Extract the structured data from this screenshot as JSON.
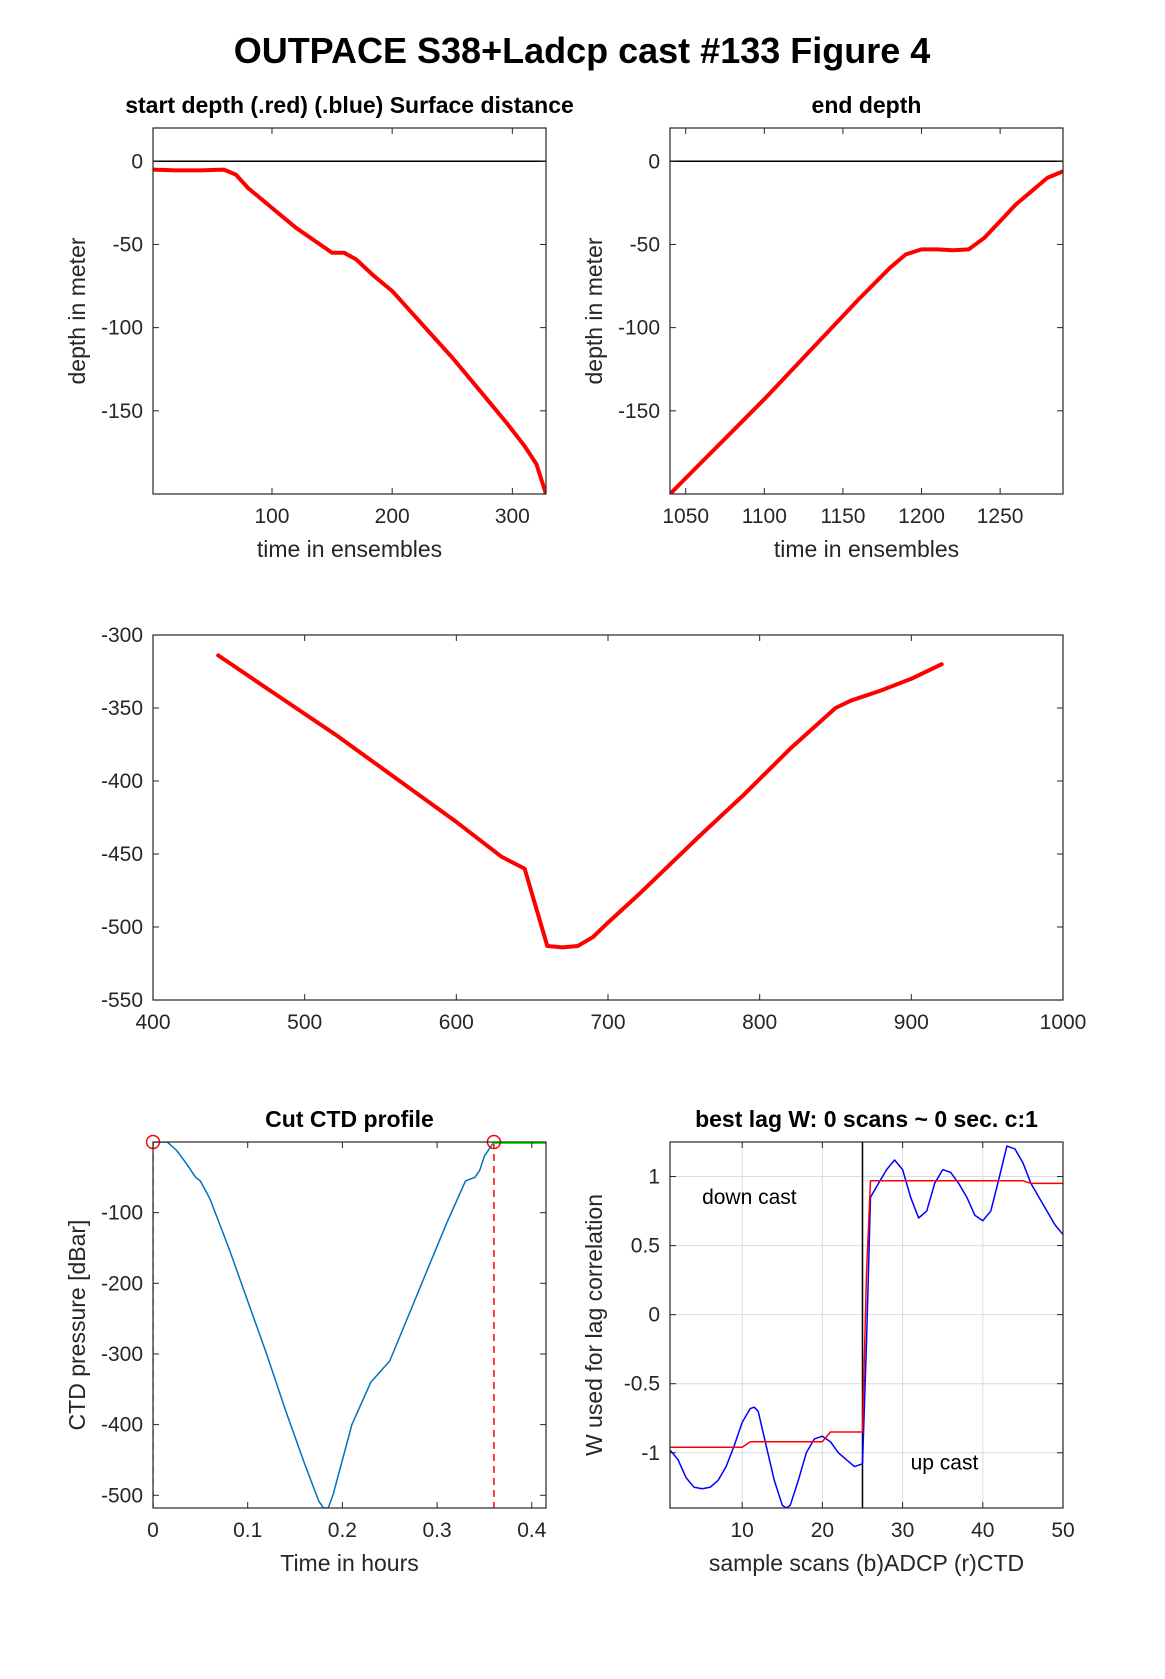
{
  "figure_title": "OUTPACE S38+Ladcp cast #133    Figure 4",
  "chart_data": [
    {
      "id": "p1",
      "type": "line",
      "title": "start depth (.red) (.blue) Surface distance",
      "xlabel": "time in ensembles",
      "ylabel": "depth in meter",
      "xlim": [
        1,
        328
      ],
      "ylim": [
        -200,
        20
      ],
      "xticks": [
        100,
        200,
        300
      ],
      "yticks": [
        0,
        -50,
        -100,
        -150
      ],
      "grid": false,
      "hlines": [
        {
          "y": 0,
          "color": "#000000"
        }
      ],
      "series": [
        {
          "color": "#ff0000",
          "width": 4,
          "x": [
            1,
            20,
            40,
            60,
            70,
            80,
            100,
            120,
            140,
            150,
            160,
            170,
            185,
            200,
            210,
            220,
            235,
            250,
            265,
            280,
            295,
            310,
            320,
            328
          ],
          "y": [
            -5,
            -5.5,
            -5.5,
            -5,
            -8,
            -16,
            -28,
            -40,
            -50,
            -55,
            -55,
            -59,
            -69,
            -78,
            -86,
            -94,
            -106,
            -118,
            -131,
            -144,
            -157,
            -171,
            -182,
            -200
          ]
        }
      ]
    },
    {
      "id": "p2",
      "type": "line",
      "title": "end depth",
      "xlabel": "time in ensembles",
      "ylabel": "depth in meter",
      "xlim": [
        1040,
        1290
      ],
      "ylim": [
        -200,
        20
      ],
      "xticks": [
        1050,
        1100,
        1150,
        1200,
        1250
      ],
      "yticks": [
        0,
        -50,
        -100,
        -150
      ],
      "grid": false,
      "hlines": [
        {
          "y": 0,
          "color": "#000000"
        }
      ],
      "series": [
        {
          "color": "#ff0000",
          "width": 4,
          "x": [
            1040,
            1060,
            1080,
            1100,
            1120,
            1140,
            1160,
            1180,
            1190,
            1200,
            1210,
            1220,
            1230,
            1240,
            1250,
            1260,
            1270,
            1280,
            1290
          ],
          "y": [
            -200,
            -181,
            -162,
            -143,
            -123,
            -103,
            -83,
            -64,
            -56,
            -53,
            -53,
            -53.5,
            -53,
            -46,
            -36,
            -26,
            -18,
            -10,
            -6
          ]
        }
      ]
    },
    {
      "id": "p3",
      "type": "line",
      "title": "",
      "xlabel": "",
      "ylabel": "",
      "xlim": [
        400,
        1000
      ],
      "ylim": [
        -550,
        -300
      ],
      "xticks": [
        400,
        500,
        600,
        700,
        800,
        900,
        1000
      ],
      "yticks": [
        -300,
        -350,
        -400,
        -450,
        -500,
        -550
      ],
      "grid": false,
      "hlines": [],
      "series": [
        {
          "color": "#ff0000",
          "width": 4,
          "x": [
            443,
            480,
            520,
            560,
            600,
            630,
            645,
            660,
            670,
            680,
            690,
            700,
            720,
            740,
            760,
            790,
            820,
            850,
            860,
            880,
            900,
            920
          ],
          "y": [
            -314,
            -340,
            -368,
            -398,
            -428,
            -452,
            -460,
            -513,
            -514,
            -513,
            -507,
            -497,
            -478,
            -458,
            -438,
            -409,
            -378,
            -350,
            -345,
            -338,
            -330,
            -320
          ]
        }
      ]
    },
    {
      "id": "p4",
      "type": "line",
      "title": "Cut CTD profile",
      "xlabel": "Time in hours",
      "ylabel": "CTD pressure [dBar]",
      "xlim": [
        0,
        0.415
      ],
      "ylim": [
        -518,
        0
      ],
      "xticks": [
        0,
        0.1,
        0.2,
        0.3,
        0.4
      ],
      "yticks": [
        -100,
        -200,
        -300,
        -400,
        -500
      ],
      "grid": false,
      "hlines": [],
      "series": [
        {
          "color": "#0072bd",
          "width": 1.5,
          "x": [
            0,
            0.015,
            0.025,
            0.035,
            0.045,
            0.05,
            0.06,
            0.08,
            0.1,
            0.12,
            0.14,
            0.16,
            0.175,
            0.18,
            0.185,
            0.19,
            0.2,
            0.21,
            0.23,
            0.25,
            0.27,
            0.29,
            0.31,
            0.33,
            0.34,
            0.345,
            0.35,
            0.36
          ],
          "y": [
            0,
            0,
            -12,
            -30,
            -50,
            -55,
            -80,
            -150,
            -225,
            -300,
            -380,
            -455,
            -508,
            -518,
            -518,
            -500,
            -450,
            -400,
            -340,
            -310,
            -245,
            -180,
            -115,
            -55,
            -50,
            -40,
            -20,
            0
          ]
        },
        {
          "color": "#00ff00",
          "width": 4,
          "x": [
            0.36,
            0.415
          ],
          "y": [
            0,
            0
          ]
        }
      ],
      "vlines": [
        {
          "x": 0,
          "color": "#ff0000",
          "dash": true
        },
        {
          "x": 0.36,
          "color": "#ff0000",
          "dash": true
        }
      ],
      "markers": [
        {
          "x": 0,
          "y": 0,
          "color": "#ff0000"
        },
        {
          "x": 0.36,
          "y": 0,
          "color": "#ff0000"
        }
      ]
    },
    {
      "id": "p5",
      "type": "line",
      "title": "best lag W: 0 scans ~ 0 sec.  c:1",
      "xlabel": "sample scans (b)ADCP (r)CTD",
      "ylabel": "W used for lag correlation",
      "xlim": [
        1,
        50
      ],
      "ylim": [
        -1.4,
        1.25
      ],
      "xticks": [
        10,
        20,
        30,
        40,
        50
      ],
      "yticks": [
        1,
        0.5,
        0,
        -0.5,
        -1
      ],
      "grid": true,
      "hlines": [],
      "vlines": [
        {
          "x": 25,
          "color": "#000000",
          "dash": false
        }
      ],
      "annotations": [
        {
          "text": "down cast",
          "x": 5,
          "y": 0.8
        },
        {
          "text": "up cast",
          "x": 31,
          "y": -1.12
        }
      ],
      "series": [
        {
          "color": "#0000ff",
          "width": 1.5,
          "x": [
            1,
            2,
            3,
            4,
            5,
            6,
            7,
            8,
            9,
            10,
            11,
            11.5,
            12,
            13,
            14,
            15,
            15.5,
            16,
            17,
            18,
            19,
            20,
            21,
            22,
            23,
            24,
            25,
            25.5,
            26,
            27,
            28,
            29,
            30,
            31,
            32,
            33,
            34,
            35,
            36,
            37,
            38,
            39,
            40,
            41,
            42,
            43,
            44,
            45,
            46,
            47,
            48,
            49,
            50
          ],
          "y": [
            -0.98,
            -1.05,
            -1.18,
            -1.25,
            -1.26,
            -1.25,
            -1.2,
            -1.1,
            -0.95,
            -0.78,
            -0.68,
            -0.67,
            -0.7,
            -0.95,
            -1.2,
            -1.38,
            -1.4,
            -1.38,
            -1.2,
            -1.0,
            -0.9,
            -0.88,
            -0.92,
            -1.0,
            -1.05,
            -1.1,
            -1.08,
            -0.2,
            0.85,
            0.95,
            1.05,
            1.12,
            1.05,
            0.85,
            0.7,
            0.75,
            0.95,
            1.05,
            1.03,
            0.95,
            0.85,
            0.72,
            0.68,
            0.75,
            0.98,
            1.22,
            1.2,
            1.1,
            0.95,
            0.85,
            0.75,
            0.65,
            0.58
          ]
        },
        {
          "color": "#ff0000",
          "width": 1.5,
          "x": [
            1,
            10,
            11,
            20,
            21,
            25,
            25.5,
            26,
            35,
            45,
            46,
            50
          ],
          "y": [
            -0.96,
            -0.96,
            -0.92,
            -0.92,
            -0.85,
            -0.85,
            0.3,
            0.97,
            0.97,
            0.97,
            0.95,
            0.95
          ]
        }
      ]
    }
  ]
}
